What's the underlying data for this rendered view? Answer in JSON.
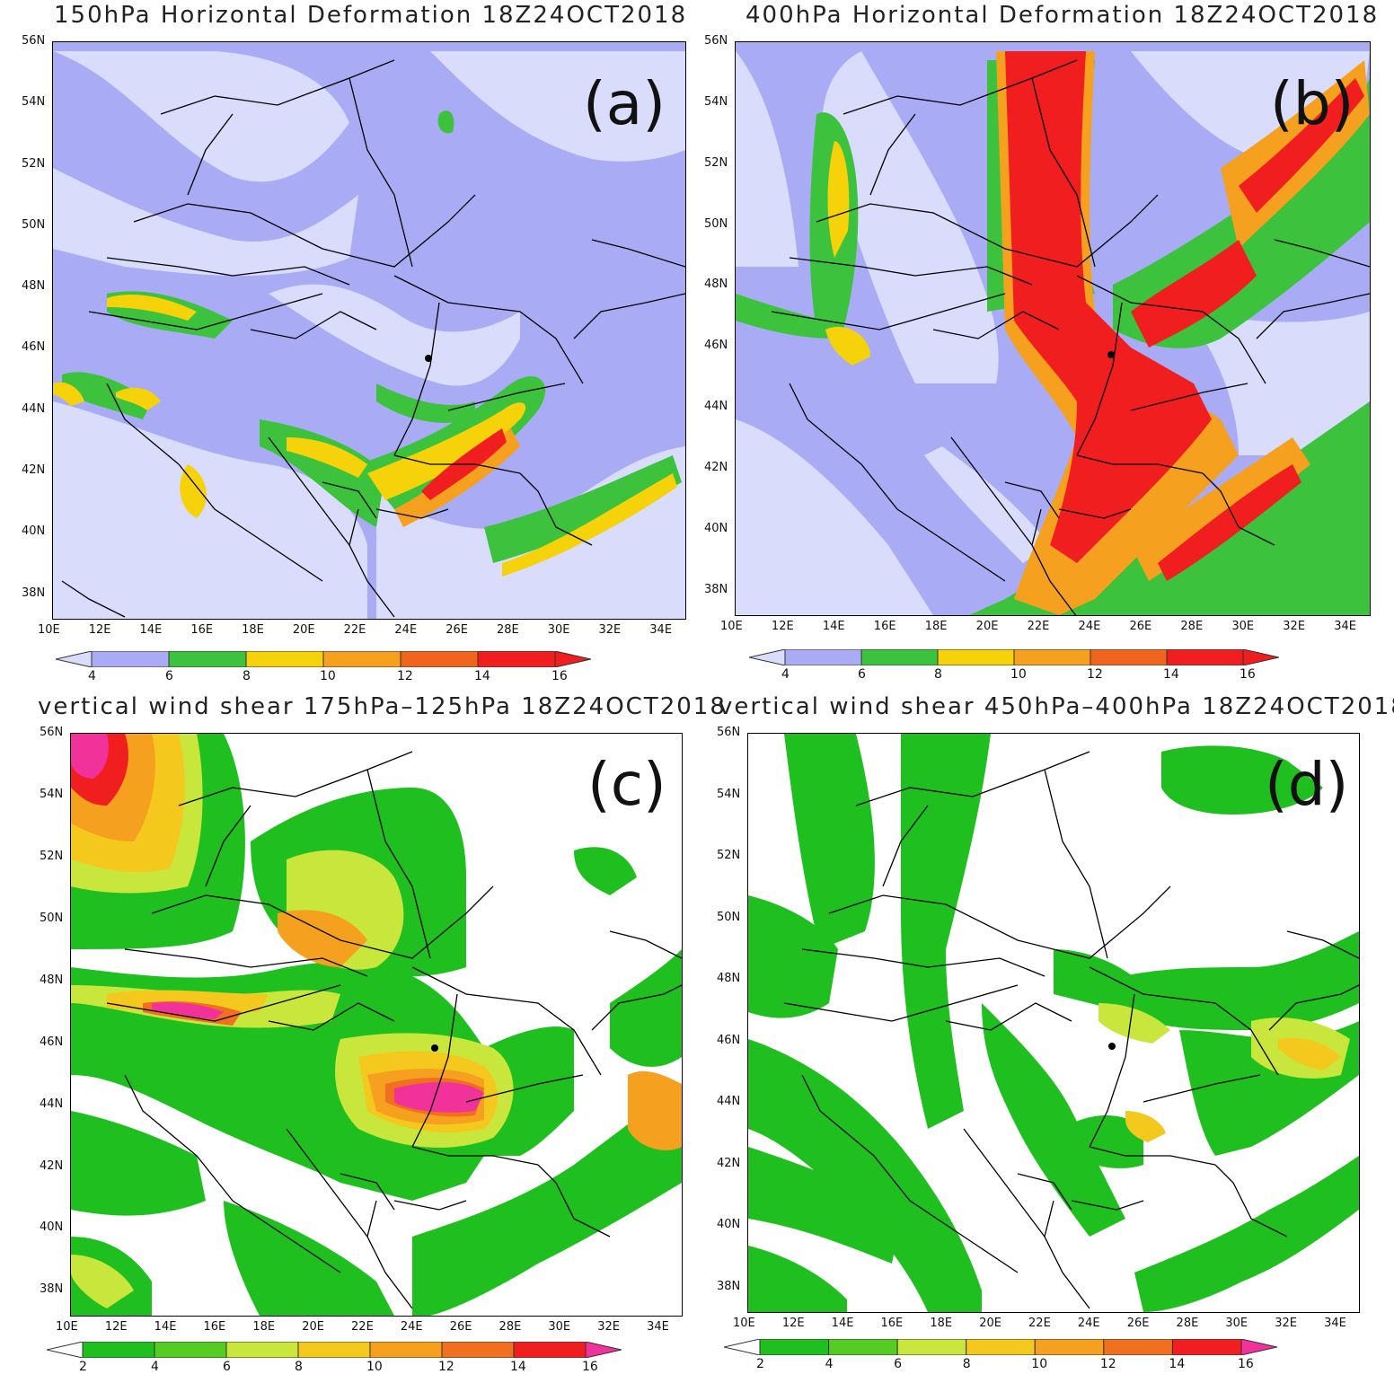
{
  "panels": {
    "a": {
      "title": "150hPa Horizontal Deformation 18Z24OCT2018",
      "label": "(a)"
    },
    "b": {
      "title": "400hPa Horizontal Deformation 18Z24OCT2018",
      "label": "(b)"
    },
    "c": {
      "title": "vertical wind shear 175hPa–125hPa 18Z24OCT2018",
      "label": "(c)"
    },
    "d": {
      "title": "vertical wind shear 450hPa–400hPa 18Z24OCT2018",
      "label": "(d)"
    }
  },
  "axes": {
    "lat_labels": [
      "56N",
      "54N",
      "52N",
      "50N",
      "48N",
      "46N",
      "44N",
      "42N",
      "40N",
      "38N"
    ],
    "lon_labels": [
      "10E",
      "12E",
      "14E",
      "16E",
      "18E",
      "20E",
      "22E",
      "24E",
      "26E",
      "28E",
      "30E",
      "32E",
      "34E"
    ]
  },
  "colorbars": {
    "deformation": {
      "labels": [
        "4",
        "6",
        "8",
        "10",
        "12",
        "14",
        "16"
      ],
      "colors": [
        "#d9dcfb",
        "#a9acf5",
        "#3cc23c",
        "#f5d20a",
        "#f5a01e",
        "#f0641e",
        "#f01e1e",
        "#f01e1e"
      ]
    },
    "shear": {
      "labels": [
        "2",
        "4",
        "6",
        "8",
        "10",
        "12",
        "14",
        "16"
      ],
      "colors": [
        "#ffffff",
        "#1fbf1f",
        "#55cc22",
        "#c8e63c",
        "#f5c81e",
        "#f5a01e",
        "#f07020",
        "#f01e1e",
        "#f0329a"
      ]
    }
  },
  "marker": {
    "name": "black-dot-location",
    "lon": 24.9,
    "lat": 45.7
  }
}
